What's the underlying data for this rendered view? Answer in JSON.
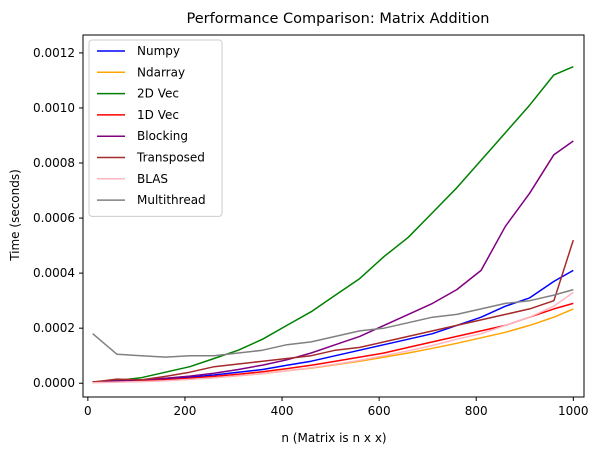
{
  "chart_data": {
    "type": "line",
    "title": "Performance Comparison: Matrix Addition",
    "xlabel": "n (Matrix is n x x)",
    "ylabel": "Time (seconds)",
    "xlim": [
      -10,
      1022
    ],
    "ylim": [
      -5e-05,
      0.001265
    ],
    "x_ticks": [
      0,
      200,
      400,
      600,
      800,
      1000
    ],
    "x_tick_labels": [
      "0",
      "200",
      "400",
      "600",
      "800",
      "1000"
    ],
    "y_ticks": [
      0,
      0.0002,
      0.0004,
      0.0006,
      0.0008,
      0.001,
      0.0012
    ],
    "y_tick_labels": [
      "0.0000",
      "0.0002",
      "0.0004",
      "0.0006",
      "0.0008",
      "0.0010",
      "0.0012"
    ],
    "grid": false,
    "legend_position": "top-left",
    "x": [
      10,
      60,
      110,
      160,
      210,
      260,
      310,
      360,
      410,
      460,
      510,
      560,
      610,
      660,
      710,
      760,
      810,
      860,
      910,
      960,
      1000
    ],
    "series": [
      {
        "name": "Numpy",
        "color": "#0000ff",
        "values": [
          5e-06,
          7e-06,
          1e-05,
          1.5e-05,
          2.2e-05,
          3e-05,
          4e-05,
          5e-05,
          6.5e-05,
          8e-05,
          0.0001,
          0.00012,
          0.00014,
          0.00016,
          0.00018,
          0.00021,
          0.00024,
          0.00028,
          0.00031,
          0.00037,
          0.00041
        ]
      },
      {
        "name": "Ndarray",
        "color": "#ffa500",
        "values": [
          3e-06,
          5e-06,
          7e-06,
          1e-05,
          1.5e-05,
          2e-05,
          2.7e-05,
          3.5e-05,
          4.5e-05,
          5.5e-05,
          6.7e-05,
          8e-05,
          9.5e-05,
          0.00011,
          0.000127,
          0.000145,
          0.000165,
          0.000185,
          0.00021,
          0.00024,
          0.00027
        ]
      },
      {
        "name": "2D Vec",
        "color": "#008000",
        "values": [
          5e-06,
          1e-05,
          2e-05,
          4e-05,
          6e-05,
          9e-05,
          0.00012,
          0.00016,
          0.00021,
          0.00026,
          0.00032,
          0.00038,
          0.00046,
          0.00053,
          0.00062,
          0.00071,
          0.00081,
          0.00091,
          0.00101,
          0.00112,
          0.00115
        ]
      },
      {
        "name": "1D Vec",
        "color": "#ff0000",
        "values": [
          4e-06,
          6e-06,
          8e-06,
          1.2e-05,
          1.8e-05,
          2.5e-05,
          3.3e-05,
          4.2e-05,
          5.3e-05,
          6.5e-05,
          8e-05,
          9.5e-05,
          0.00011,
          0.00013,
          0.00015,
          0.00017,
          0.00019,
          0.00021,
          0.00024,
          0.00027,
          0.00029
        ]
      },
      {
        "name": "Blocking",
        "color": "#800080",
        "values": [
          5e-06,
          8e-06,
          1.2e-05,
          1.8e-05,
          2.6e-05,
          3.6e-05,
          5e-05,
          6.6e-05,
          8.5e-05,
          0.00011,
          0.00014,
          0.00017,
          0.00021,
          0.00025,
          0.00029,
          0.00034,
          0.00041,
          0.00057,
          0.00069,
          0.00083,
          0.00088
        ]
      },
      {
        "name": "Transposed",
        "color": "#a52a2a",
        "values": [
          4e-06,
          1.5e-05,
          1.2e-05,
          2.5e-05,
          4e-05,
          6e-05,
          7e-05,
          8e-05,
          9e-05,
          0.0001,
          0.00012,
          0.00013,
          0.00015,
          0.00017,
          0.00019,
          0.00021,
          0.00023,
          0.00025,
          0.00027,
          0.0003,
          0.00052
        ]
      },
      {
        "name": "BLAS",
        "color": "#ffb6c1",
        "values": [
          2e-06,
          4e-06,
          6e-06,
          9e-06,
          1.4e-05,
          2e-05,
          2.7e-05,
          3.5e-05,
          4.5e-05,
          5.6e-05,
          6.9e-05,
          8.3e-05,
          0.0001,
          0.000118,
          0.000137,
          0.00016,
          0.00018,
          0.00021,
          0.00024,
          0.00028,
          0.00033
        ]
      },
      {
        "name": "Multithread",
        "color": "#808080",
        "values": [
          0.00018,
          0.000105,
          0.0001,
          9.5e-05,
          0.0001,
          0.0001,
          0.00011,
          0.00012,
          0.00014,
          0.00015,
          0.00017,
          0.00019,
          0.0002,
          0.00022,
          0.00024,
          0.00025,
          0.00027,
          0.00029,
          0.0003,
          0.00032,
          0.00034
        ]
      }
    ]
  }
}
